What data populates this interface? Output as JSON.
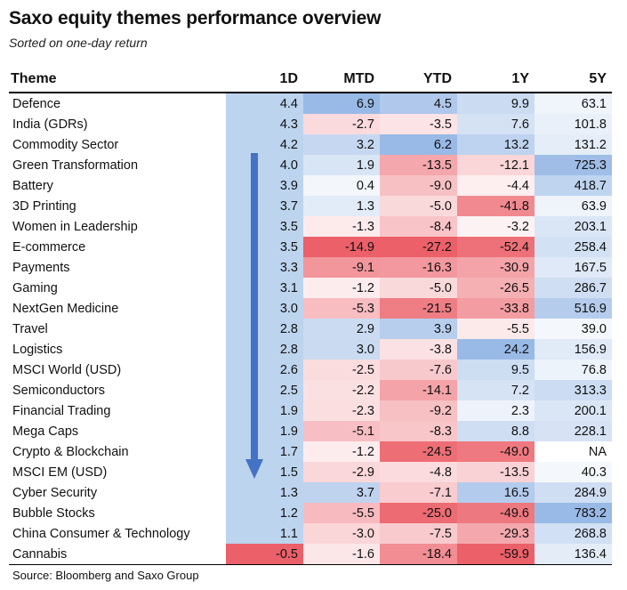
{
  "title": "Saxo equity themes performance overview",
  "subtitle": "Sorted on one-day return",
  "source": "Source: Bloomberg and Saxo Group",
  "colors": {
    "positive": "#5b8fd6",
    "negative": "#e8444e",
    "one_day_column": "#bcd4ee",
    "arrow": "#4472c4"
  },
  "chart_data": {
    "type": "table",
    "columns": [
      "Theme",
      "1D",
      "MTD",
      "YTD",
      "1Y",
      "5Y"
    ],
    "rows": [
      {
        "theme": "Defence",
        "values": [
          "4.4",
          "6.9",
          "4.5",
          "9.9",
          "63.1"
        ]
      },
      {
        "theme": "India (GDRs)",
        "values": [
          "4.3",
          "-2.7",
          "-3.5",
          "7.6",
          "101.8"
        ]
      },
      {
        "theme": "Commodity Sector",
        "values": [
          "4.2",
          "3.2",
          "6.2",
          "13.2",
          "131.2"
        ]
      },
      {
        "theme": "Green Transformation",
        "values": [
          "4.0",
          "1.9",
          "-13.5",
          "-12.1",
          "725.3"
        ]
      },
      {
        "theme": "Battery",
        "values": [
          "3.9",
          "0.4",
          "-9.0",
          "-4.4",
          "418.7"
        ]
      },
      {
        "theme": "3D Printing",
        "values": [
          "3.7",
          "1.3",
          "-5.0",
          "-41.8",
          "63.9"
        ]
      },
      {
        "theme": "Women in Leadership",
        "values": [
          "3.5",
          "-1.3",
          "-8.4",
          "-3.2",
          "203.1"
        ]
      },
      {
        "theme": "E-commerce",
        "values": [
          "3.5",
          "-14.9",
          "-27.2",
          "-52.4",
          "258.4"
        ]
      },
      {
        "theme": "Payments",
        "values": [
          "3.3",
          "-9.1",
          "-16.3",
          "-30.9",
          "167.5"
        ]
      },
      {
        "theme": "Gaming",
        "values": [
          "3.1",
          "-1.2",
          "-5.0",
          "-26.5",
          "286.7"
        ]
      },
      {
        "theme": "NextGen Medicine",
        "values": [
          "3.0",
          "-5.3",
          "-21.5",
          "-33.8",
          "516.9"
        ]
      },
      {
        "theme": "Travel",
        "values": [
          "2.8",
          "2.9",
          "3.9",
          "-5.5",
          "39.0"
        ]
      },
      {
        "theme": "Logistics",
        "values": [
          "2.8",
          "3.0",
          "-3.8",
          "24.2",
          "156.9"
        ]
      },
      {
        "theme": "MSCI World (USD)",
        "values": [
          "2.6",
          "-2.5",
          "-7.6",
          "9.5",
          "76.8"
        ]
      },
      {
        "theme": "Semiconductors",
        "values": [
          "2.5",
          "-2.2",
          "-14.1",
          "7.2",
          "313.3"
        ]
      },
      {
        "theme": "Financial Trading",
        "values": [
          "1.9",
          "-2.3",
          "-9.2",
          "2.3",
          "200.1"
        ]
      },
      {
        "theme": "Mega Caps",
        "values": [
          "1.9",
          "-5.1",
          "-8.3",
          "8.8",
          "228.1"
        ]
      },
      {
        "theme": "Crypto & Blockchain",
        "values": [
          "1.7",
          "-1.2",
          "-24.5",
          "-49.0",
          "NA"
        ]
      },
      {
        "theme": "MSCI EM (USD)",
        "values": [
          "1.5",
          "-2.9",
          "-4.8",
          "-13.5",
          "40.3"
        ]
      },
      {
        "theme": "Cyber Security",
        "values": [
          "1.3",
          "3.7",
          "-7.1",
          "16.5",
          "284.9"
        ]
      },
      {
        "theme": "Bubble Stocks",
        "values": [
          "1.2",
          "-5.5",
          "-25.0",
          "-49.6",
          "783.2"
        ]
      },
      {
        "theme": "China Consumer & Technology",
        "values": [
          "1.1",
          "-3.0",
          "-7.5",
          "-29.3",
          "268.8"
        ]
      },
      {
        "theme": "Cannabis",
        "values": [
          "-0.5",
          "-1.6",
          "-18.4",
          "-59.9",
          "136.4"
        ]
      }
    ]
  }
}
